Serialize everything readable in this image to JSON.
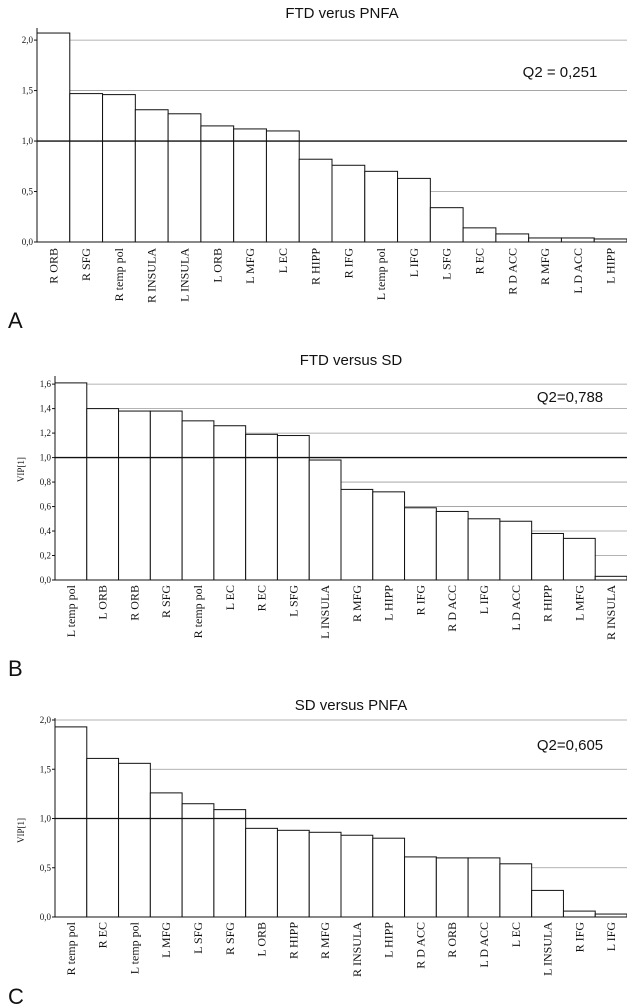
{
  "chart_data": [
    {
      "type": "bar",
      "panel_label": "A",
      "title": "FTD verus PNFA",
      "annotation": "Q2 = 0,251",
      "ylabel": "",
      "ylim": [
        0,
        2.1
      ],
      "yticks": [
        "0,0",
        "0,5",
        "1,0",
        "1,5",
        "2,0"
      ],
      "reference_line": 1.0,
      "categories": [
        "R ORB",
        "R SFG",
        "R temp pol",
        "R INSULA",
        "L INSULA",
        "L ORB",
        "L MFG",
        "L EC",
        "R HIPP",
        "R IFG",
        "L temp pol",
        "L IFG",
        "L SFG",
        "R EC",
        "R D ACC",
        "R MFG",
        "L D ACC",
        "L HIPP"
      ],
      "values": [
        2.07,
        1.47,
        1.46,
        1.31,
        1.27,
        1.15,
        1.12,
        1.1,
        0.82,
        0.76,
        0.7,
        0.63,
        0.34,
        0.14,
        0.08,
        0.04,
        0.04,
        0.03
      ]
    },
    {
      "type": "bar",
      "panel_label": "B",
      "title": "FTD versus SD",
      "annotation": "Q2=0,788",
      "ylabel": "VIP[1]",
      "ylim": [
        0,
        1.65
      ],
      "yticks": [
        "0,0",
        "0,2",
        "0,4",
        "0,6",
        "0,8",
        "1,0",
        "1,2",
        "1,4",
        "1,6"
      ],
      "reference_line": 1.0,
      "categories": [
        "L temp pol",
        "L ORB",
        "R ORB",
        "R SFG",
        "R temp pol",
        "L EC",
        "R EC",
        "L SFG",
        "L INSULA",
        "R MFG",
        "L HIPP",
        "R IFG",
        "R D ACC",
        "L IFG",
        "L D ACC",
        "R HIPP",
        "L MFG",
        "R INSULA"
      ],
      "values": [
        1.61,
        1.4,
        1.38,
        1.38,
        1.3,
        1.26,
        1.19,
        1.18,
        0.98,
        0.74,
        0.72,
        0.59,
        0.56,
        0.5,
        0.48,
        0.38,
        0.34,
        0.03
      ]
    },
    {
      "type": "bar",
      "panel_label": "C",
      "title": "SD versus PNFA",
      "annotation": "Q2=0,605",
      "ylabel": "VIP[1]",
      "ylim": [
        0,
        2.0
      ],
      "yticks": [
        "0,0",
        "0,5",
        "1,0",
        "1,5",
        "2,0"
      ],
      "reference_line": 1.0,
      "categories": [
        "R temp pol",
        "R EC",
        "L temp pol",
        "L MFG",
        "L SFG",
        "R SFG",
        "L ORB",
        "R HIPP",
        "R MFG",
        "R INSULA",
        "L HIPP",
        "R D ACC",
        "R ORB",
        "L D ACC",
        "L EC",
        "L INSULA",
        "R IFG",
        "L IFG"
      ],
      "values": [
        1.93,
        1.61,
        1.56,
        1.26,
        1.15,
        1.09,
        0.9,
        0.88,
        0.86,
        0.83,
        0.8,
        0.61,
        0.6,
        0.6,
        0.54,
        0.27,
        0.06,
        0.03
      ]
    }
  ]
}
